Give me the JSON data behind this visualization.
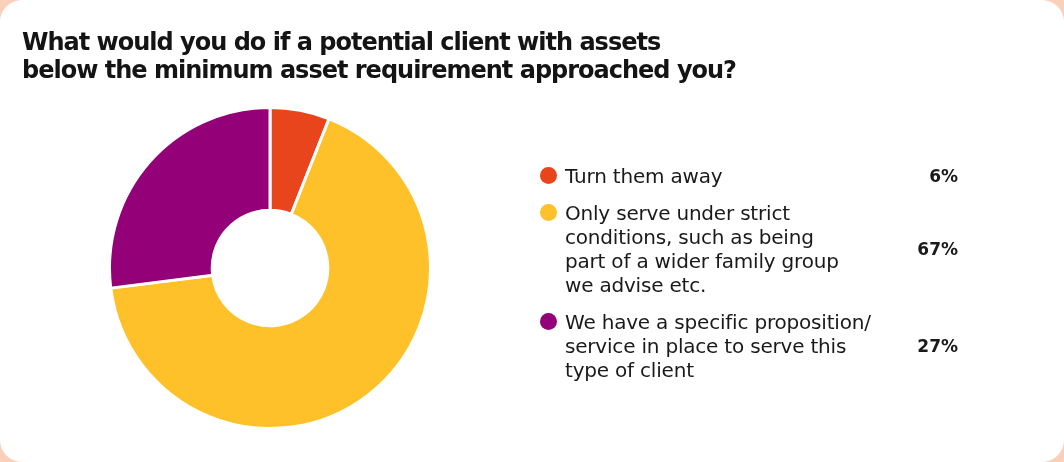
{
  "chart_data": {
    "type": "donut",
    "title": "What would you do if a potential client with assets\nbelow the minimum asset requirement approached you?",
    "categories": [
      "Turn them away",
      "Only serve under strict\nconditions, such as being\npart of a wider family group\nwe advise etc.",
      "We have a specific proposition/\nservice in place to serve this\ntype of client"
    ],
    "values": [
      6,
      67,
      27
    ],
    "colors": [
      "#e9451c",
      "#fec12a",
      "#930077"
    ],
    "value_labels": [
      "6%",
      "67%",
      "27%"
    ],
    "legend": "right"
  }
}
